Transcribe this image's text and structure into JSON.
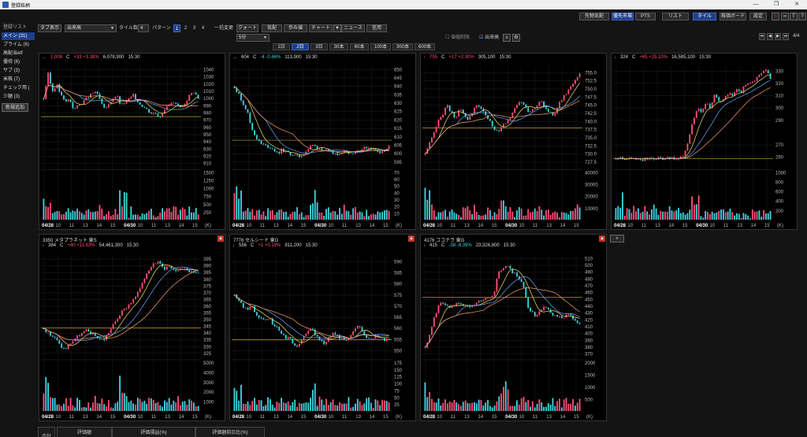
{
  "window": {
    "title": "登録銘柄"
  },
  "top_right_buttons": [
    {
      "label": "先物気配",
      "on": false
    },
    {
      "label": "優先市場",
      "on": true
    },
    {
      "label": "PTS",
      "on": false
    },
    {
      "label": "リスト",
      "on": false
    },
    {
      "label": "タイル",
      "on": true
    },
    {
      "label": "株価ボード",
      "on": false
    },
    {
      "label": "設定",
      "on": false
    }
  ],
  "sidebar": {
    "header": "登録リスト",
    "items": [
      {
        "label": "メイン (31)",
        "active": true
      },
      {
        "label": "プライム (6)",
        "active": false
      },
      {
        "label": "高配当etf",
        "active": false
      },
      {
        "label": "優待 (6)",
        "active": false
      },
      {
        "label": "サブ (3)",
        "active": false
      },
      {
        "label": "米株 (7)",
        "active": false
      },
      {
        "label": "チェック用 (",
        "active": false
      },
      {
        "label": "少額 (3)",
        "active": false
      }
    ],
    "add_button": "新規追加"
  },
  "controls": {
    "tab_display": "タブ表示",
    "sort_select": "出来高",
    "tile_count_label": "タイル数",
    "tile_count": "4",
    "pattern_label": "パターン",
    "patterns": [
      "1",
      "2",
      "3",
      "4"
    ],
    "pattern_selected": 0,
    "bulk_label": "一括変更",
    "bulk_buttons": [
      "クォート",
      "気配",
      "歩み値",
      "チャート",
      "ニュース",
      "信用"
    ],
    "interval_select": "5分",
    "intervals": [
      "1日",
      "2日",
      "3日",
      "30本",
      "60本",
      "100本",
      "300本",
      "600本"
    ],
    "interval_selected": 1,
    "limit_check": "値幅制限",
    "volume_check": "出来高",
    "page": "4/4"
  },
  "panels": [
    {
      "title": "",
      "arrow": "→",
      "price": "1,008",
      "price_suffix": "C",
      "change": "+33 +3.38%",
      "volume": "6,078,900",
      "time": "15:30",
      "dir": "up",
      "alert": false,
      "chart_data": {
        "type": "candlestick",
        "y_ticks": [
          "1040",
          "1030",
          "1020",
          "1010",
          "1000",
          "990",
          "980",
          "970",
          "960",
          "950",
          "940",
          "930",
          "920",
          "910"
        ],
        "ylim": [
          905,
          1045
        ],
        "vol_ticks": [
          "1500",
          "1250",
          "1000",
          "750",
          "500",
          "250"
        ],
        "vol_unit": "(K)",
        "x_ticks": [
          "04/28",
          "10",
          "11",
          "13",
          "14",
          "15",
          "04/30",
          "10",
          "11",
          "13",
          "14",
          "15"
        ],
        "ref_line": 975,
        "path": [
          1000,
          1035,
          1010,
          1020,
          1005,
          995,
          1000,
          985,
          990,
          995,
          1000,
          1005,
          1010,
          1000,
          985,
          990,
          1000,
          1005,
          990,
          995,
          1000,
          1005,
          995,
          990,
          985,
          980,
          980,
          975,
          985,
          990,
          995,
          990,
          985,
          995,
          1005,
          1010,
          1000
        ],
        "trend": "flat"
      }
    },
    {
      "title": "",
      "arrow": "→",
      "price": "604",
      "price_suffix": "C",
      "change": "-4 -0.66%",
      "volume": "113,900",
      "time": "15:30",
      "dir": "dn",
      "alert": false,
      "chart_data": {
        "type": "candlestick",
        "y_ticks": [
          "650",
          "645",
          "640",
          "635",
          "630",
          "625",
          "620",
          "615",
          "610",
          "605",
          "600",
          "595"
        ],
        "ylim": [
          592,
          652
        ],
        "vol_ticks": [
          "70",
          "60",
          "50",
          "40",
          "30",
          "20",
          "10"
        ],
        "vol_unit": "(K)",
        "x_ticks": [
          "04/28",
          "10",
          "11",
          "13",
          "14",
          "15",
          "04/30",
          "10",
          "11",
          "13",
          "14",
          "15"
        ],
        "ref_line": 608,
        "path": [
          640,
          635,
          630,
          625,
          615,
          610,
          606,
          605,
          604,
          603,
          600,
          602,
          601,
          600,
          599,
          598,
          600,
          602,
          605,
          604,
          603,
          602,
          601,
          600,
          600,
          601,
          602,
          600,
          601,
          602,
          603,
          604,
          603,
          602,
          601,
          602,
          604
        ],
        "trend": "down"
      }
    },
    {
      "title": "",
      "arrow": "↑",
      "price": "755",
      "price_suffix": "C",
      "change": "+17 +2.30%",
      "volume": "305,100",
      "time": "15:30",
      "dir": "up",
      "alert": false,
      "chart_data": {
        "type": "candlestick",
        "y_ticks": [
          "755.0",
          "752.5",
          "750.0",
          "747.5",
          "745.0",
          "742.5",
          "740.0",
          "737.5",
          "735.0",
          "732.5",
          "730.0",
          "727.5"
        ],
        "ylim": [
          726,
          757
        ],
        "vol_ticks": [
          "40000",
          "30000",
          "20000",
          "10000"
        ],
        "vol_unit": "",
        "x_ticks": [
          "04/28",
          "10",
          "11",
          "13",
          "14",
          "15",
          "04/30",
          "10",
          "11",
          "13",
          "14",
          "15"
        ],
        "ref_line": 738,
        "path": [
          730,
          733,
          736,
          740,
          742,
          745,
          743,
          741,
          744,
          742,
          740,
          743,
          745,
          744,
          742,
          740,
          738,
          737,
          739,
          740,
          742,
          744,
          746,
          745,
          743,
          744,
          745,
          746,
          744,
          743,
          742,
          745,
          747,
          749,
          751,
          753,
          755
        ],
        "trend": "up"
      }
    },
    {
      "title": "",
      "arrow": "↓",
      "price": "324",
      "price_suffix": "C",
      "change": "+65 +25.10%",
      "volume": "16,585,100",
      "time": "15:30",
      "dir": "dn",
      "alert": false,
      "chart_data": {
        "type": "candlestick",
        "y_ticks": [
          "330",
          "320",
          "310",
          "300",
          "290",
          "270",
          "260"
        ],
        "ylim": [
          252,
          334
        ],
        "vol_ticks": [
          "1000",
          "800",
          "600",
          "400",
          "200"
        ],
        "vol_unit": "(K)",
        "x_ticks": [
          "04/28",
          "10",
          "11",
          "13",
          "14",
          "15",
          "04/30",
          "10",
          "11",
          "13",
          "14",
          "15"
        ],
        "ref_line": 259,
        "path": [
          259,
          259,
          258,
          259,
          259,
          259,
          258,
          259,
          259,
          259,
          259,
          259,
          259,
          259,
          259,
          260,
          262,
          275,
          290,
          300,
          295,
          305,
          300,
          310,
          305,
          308,
          312,
          310,
          315,
          312,
          318,
          320,
          322,
          325,
          328,
          330,
          324
        ],
        "trend": "up"
      }
    },
    {
      "title": "3350  メタプラネット    東S",
      "arrow": "↓",
      "price": "384",
      "price_suffix": "C",
      "change": "+40 +11.63%",
      "volume": "54,461,300",
      "time": "15:30",
      "dir": "dn",
      "alert": true,
      "chart_data": {
        "type": "candlestick",
        "y_ticks": [
          "395",
          "390",
          "385",
          "380",
          "375",
          "370",
          "365",
          "360",
          "355",
          "350",
          "345",
          "340",
          "335",
          "330",
          "325"
        ],
        "ylim": [
          322,
          398
        ],
        "vol_ticks": [
          "5000",
          "4000",
          "3000",
          "2000",
          "1000"
        ],
        "vol_unit": "(K)",
        "x_ticks": [
          "04/28",
          "10",
          "11",
          "13",
          "14",
          "15",
          "04/30",
          "10",
          "11",
          "13",
          "14",
          "15"
        ],
        "ref_line": 344,
        "path": [
          344,
          340,
          338,
          335,
          330,
          328,
          332,
          335,
          338,
          340,
          342,
          340,
          338,
          336,
          335,
          340,
          345,
          350,
          355,
          358,
          362,
          365,
          370,
          378,
          385,
          390,
          393,
          392,
          388,
          390,
          387,
          385,
          388,
          389,
          386,
          385,
          384
        ],
        "trend": "up"
      }
    },
    {
      "title": "7776  セルシード    東G",
      "arrow": "↓",
      "price": "556",
      "price_suffix": "C",
      "change": "+1 +0.18%",
      "volume": "911,200",
      "time": "15:30",
      "dir": "dn",
      "alert": true,
      "chart_data": {
        "type": "candlestick",
        "y_ticks": [
          "590",
          "585",
          "580",
          "575",
          "570",
          "565",
          "560",
          "555",
          "550"
        ],
        "ylim": [
          547,
          593
        ],
        "vol_ticks": [
          "175",
          "150",
          "125",
          "100",
          "75",
          "50",
          "25"
        ],
        "vol_unit": "(K)",
        "x_ticks": [
          "04/28",
          "10",
          "11",
          "13",
          "14",
          "15",
          "04/30",
          "10",
          "11",
          "13",
          "14",
          "15"
        ],
        "ref_line": 555,
        "path": [
          575,
          572,
          570,
          568,
          570,
          567,
          565,
          563,
          565,
          562,
          560,
          558,
          556,
          555,
          553,
          552,
          556,
          558,
          560,
          557,
          555,
          553,
          556,
          558,
          557,
          555,
          554,
          556,
          560,
          562,
          558,
          556,
          555,
          557,
          556,
          555,
          556
        ],
        "trend": "down"
      }
    },
    {
      "title": "4176  ココナラ    東G",
      "arrow": "↓",
      "price": "415",
      "price_suffix": "C",
      "change": "-38 -8.39%",
      "volume": "23,326,800",
      "time": "15:30",
      "dir": "dn",
      "alert": true,
      "chart_data": {
        "type": "candlestick",
        "y_ticks": [
          "510",
          "500",
          "490",
          "480",
          "470",
          "460",
          "450",
          "440",
          "430",
          "420",
          "410",
          "400",
          "390",
          "380",
          "370"
        ],
        "ylim": [
          365,
          515
        ],
        "vol_ticks": [
          "2000",
          "1500",
          "1000",
          "500"
        ],
        "vol_unit": "(K)",
        "x_ticks": [
          "04/28",
          "10",
          "11",
          "13",
          "14",
          "15",
          "04/30",
          "10",
          "11",
          "13",
          "14",
          "15"
        ],
        "ref_line": 453,
        "path": [
          380,
          395,
          420,
          440,
          445,
          440,
          438,
          442,
          445,
          440,
          438,
          442,
          445,
          448,
          450,
          452,
          455,
          490,
          495,
          500,
          492,
          488,
          480,
          465,
          440,
          430,
          425,
          435,
          440,
          430,
          428,
          425,
          420,
          430,
          425,
          418,
          415
        ],
        "trend": "down"
      }
    }
  ],
  "bottom": {
    "total_label": "合計",
    "cols": [
      {
        "title": "評価額",
        "value": "--"
      },
      {
        "title": "評価損益(%)",
        "value": "(--%)"
      },
      {
        "title": "評価額前日比(%)",
        "value": "(--%)"
      }
    ]
  }
}
